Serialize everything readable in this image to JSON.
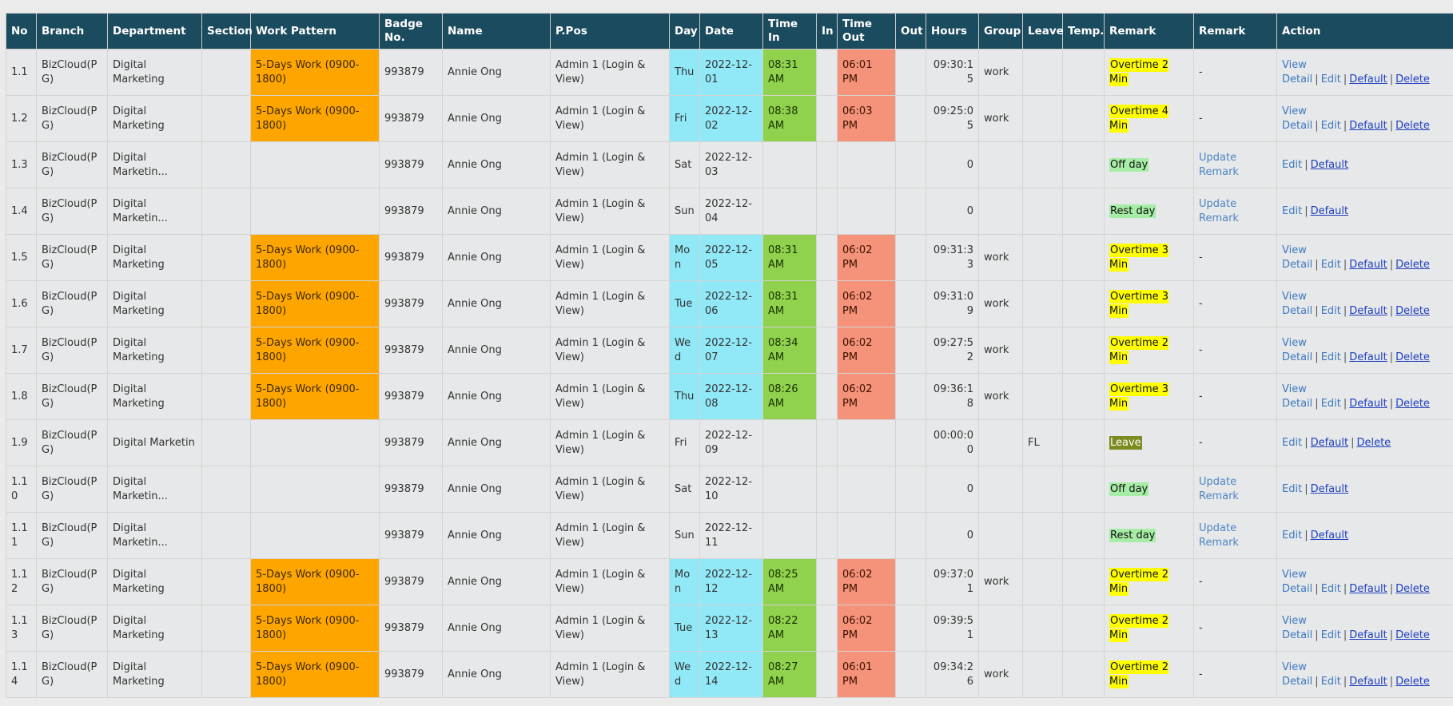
{
  "columns": [
    "No",
    "Branch",
    "Department",
    "Section",
    "Work Pattern",
    "Badge No.",
    "Name",
    "P.Pos",
    "Day",
    "Date",
    "Time In",
    "In",
    "Time Out",
    "Out",
    "Hours",
    "Group",
    "Leave",
    "Temp.",
    "Remark",
    "Remark",
    "Action"
  ],
  "action_labels": {
    "view": "View Detail",
    "edit": "Edit",
    "default": "Default",
    "delete": "Delete",
    "update_remark": "Update Remark"
  },
  "colors": {
    "header_bg": "#1b4b5e",
    "work_pattern": "#ffa500",
    "day_date": "#91e8f7",
    "time_in": "#90d24d",
    "time_out": "#f5937a",
    "overtime": "#ffff00",
    "off_rest": "#a6eda6",
    "leave": "#7c8a1f"
  },
  "rows": [
    {
      "no": "1.1",
      "branch": "BizCloud(PG)",
      "department": "Digital Marketing",
      "section": "",
      "work_pattern": "5-Days Work (0900-1800)",
      "badge": "993879",
      "name": "Annie Ong",
      "ppos": "Admin 1 (Login & View)",
      "day": "Thu",
      "date": "2022-12-01",
      "time_in": "08:31 AM",
      "in": "",
      "time_out": "06:01 PM",
      "out": "",
      "hours": "09:30:15",
      "group": "work",
      "leave": "",
      "temp": "",
      "remark": "Overtime 2 Min",
      "remark_type": "ot",
      "remark2": "-",
      "actions": [
        "view",
        "edit",
        "default",
        "delete"
      ]
    },
    {
      "no": "1.2",
      "branch": "BizCloud(PG)",
      "department": "Digital Marketing",
      "section": "",
      "work_pattern": "5-Days Work (0900-1800)",
      "badge": "993879",
      "name": "Annie Ong",
      "ppos": "Admin 1 (Login & View)",
      "day": "Fri",
      "date": "2022-12-02",
      "time_in": "08:38 AM",
      "in": "",
      "time_out": "06:03 PM",
      "out": "",
      "hours": "09:25:05",
      "group": "work",
      "leave": "",
      "temp": "",
      "remark": "Overtime 4 Min",
      "remark_type": "ot",
      "remark2": "-",
      "actions": [
        "view",
        "edit",
        "default",
        "delete"
      ]
    },
    {
      "no": "1.3",
      "branch": "BizCloud(PG)",
      "department": "Digital Marketin...",
      "section": "",
      "work_pattern": "",
      "badge": "993879",
      "name": "Annie Ong",
      "ppos": "Admin 1 (Login & View)",
      "day": "Sat",
      "date": "2022-12-03",
      "time_in": "",
      "in": "",
      "time_out": "",
      "out": "",
      "hours": "0",
      "group": "",
      "leave": "",
      "temp": "",
      "remark": "Off day",
      "remark_type": "off",
      "remark2": "update",
      "actions": [
        "edit",
        "default"
      ]
    },
    {
      "no": "1.4",
      "branch": "BizCloud(PG)",
      "department": "Digital Marketin...",
      "section": "",
      "work_pattern": "",
      "badge": "993879",
      "name": "Annie Ong",
      "ppos": "Admin 1 (Login & View)",
      "day": "Sun",
      "date": "2022-12-04",
      "time_in": "",
      "in": "",
      "time_out": "",
      "out": "",
      "hours": "0",
      "group": "",
      "leave": "",
      "temp": "",
      "remark": "Rest day",
      "remark_type": "rest",
      "remark2": "update",
      "actions": [
        "edit",
        "default"
      ]
    },
    {
      "no": "1.5",
      "branch": "BizCloud(PG)",
      "department": "Digital Marketing",
      "section": "",
      "work_pattern": "5-Days Work (0900-1800)",
      "badge": "993879",
      "name": "Annie Ong",
      "ppos": "Admin 1 (Login & View)",
      "day": "Mon",
      "date": "2022-12-05",
      "time_in": "08:31 AM",
      "in": "",
      "time_out": "06:02 PM",
      "out": "",
      "hours": "09:31:33",
      "group": "work",
      "leave": "",
      "temp": "",
      "remark": "Overtime 3 Min",
      "remark_type": "ot",
      "remark2": "-",
      "actions": [
        "view",
        "edit",
        "default",
        "delete"
      ]
    },
    {
      "no": "1.6",
      "branch": "BizCloud(PG)",
      "department": "Digital Marketing",
      "section": "",
      "work_pattern": "5-Days Work (0900-1800)",
      "badge": "993879",
      "name": "Annie Ong",
      "ppos": "Admin 1 (Login & View)",
      "day": "Tue",
      "date": "2022-12-06",
      "time_in": "08:31 AM",
      "in": "",
      "time_out": "06:02 PM",
      "out": "",
      "hours": "09:31:09",
      "group": "work",
      "leave": "",
      "temp": "",
      "remark": "Overtime 3 Min",
      "remark_type": "ot",
      "remark2": "-",
      "actions": [
        "view",
        "edit",
        "default",
        "delete"
      ]
    },
    {
      "no": "1.7",
      "branch": "BizCloud(PG)",
      "department": "Digital Marketing",
      "section": "",
      "work_pattern": "5-Days Work (0900-1800)",
      "badge": "993879",
      "name": "Annie Ong",
      "ppos": "Admin 1 (Login & View)",
      "day": "Wed",
      "date": "2022-12-07",
      "time_in": "08:34 AM",
      "in": "",
      "time_out": "06:02 PM",
      "out": "",
      "hours": "09:27:52",
      "group": "work",
      "leave": "",
      "temp": "",
      "remark": "Overtime 2 Min",
      "remark_type": "ot",
      "remark2": "-",
      "actions": [
        "view",
        "edit",
        "default",
        "delete"
      ]
    },
    {
      "no": "1.8",
      "branch": "BizCloud(PG)",
      "department": "Digital Marketing",
      "section": "",
      "work_pattern": "5-Days Work (0900-1800)",
      "badge": "993879",
      "name": "Annie Ong",
      "ppos": "Admin 1 (Login & View)",
      "day": "Thu",
      "date": "2022-12-08",
      "time_in": "08:26 AM",
      "in": "",
      "time_out": "06:02 PM",
      "out": "",
      "hours": "09:36:18",
      "group": "work",
      "leave": "",
      "temp": "",
      "remark": "Overtime 3 Min",
      "remark_type": "ot",
      "remark2": "-",
      "actions": [
        "view",
        "edit",
        "default",
        "delete"
      ]
    },
    {
      "no": "1.9",
      "branch": "BizCloud(PG)",
      "department": "Digital Marketin",
      "section": "",
      "work_pattern": "",
      "badge": "993879",
      "name": "Annie Ong",
      "ppos": "Admin 1 (Login & View)",
      "day": "Fri",
      "date": "2022-12-09",
      "time_in": "",
      "in": "",
      "time_out": "",
      "out": "",
      "hours": "00:00:00",
      "group": "",
      "leave": "FL",
      "temp": "",
      "remark": "Leave",
      "remark_type": "leave",
      "remark2": "-",
      "actions": [
        "edit",
        "default",
        "delete"
      ]
    },
    {
      "no": "1.10",
      "branch": "BizCloud(PG)",
      "department": "Digital Marketin...",
      "section": "",
      "work_pattern": "",
      "badge": "993879",
      "name": "Annie Ong",
      "ppos": "Admin 1 (Login & View)",
      "day": "Sat",
      "date": "2022-12-10",
      "time_in": "",
      "in": "",
      "time_out": "",
      "out": "",
      "hours": "0",
      "group": "",
      "leave": "",
      "temp": "",
      "remark": "Off day",
      "remark_type": "off",
      "remark2": "update",
      "actions": [
        "edit",
        "default"
      ]
    },
    {
      "no": "1.11",
      "branch": "BizCloud(PG)",
      "department": "Digital Marketin...",
      "section": "",
      "work_pattern": "",
      "badge": "993879",
      "name": "Annie Ong",
      "ppos": "Admin 1 (Login & View)",
      "day": "Sun",
      "date": "2022-12-11",
      "time_in": "",
      "in": "",
      "time_out": "",
      "out": "",
      "hours": "0",
      "group": "",
      "leave": "",
      "temp": "",
      "remark": "Rest day",
      "remark_type": "rest",
      "remark2": "update",
      "actions": [
        "edit",
        "default"
      ]
    },
    {
      "no": "1.12",
      "branch": "BizCloud(PG)",
      "department": "Digital Marketing",
      "section": "",
      "work_pattern": "5-Days Work (0900-1800)",
      "badge": "993879",
      "name": "Annie Ong",
      "ppos": "Admin 1 (Login & View)",
      "day": "Mon",
      "date": "2022-12-12",
      "time_in": "08:25 AM",
      "in": "",
      "time_out": "06:02 PM",
      "out": "",
      "hours": "09:37:01",
      "group": "work",
      "leave": "",
      "temp": "",
      "remark": "Overtime 2 Min",
      "remark_type": "ot",
      "remark2": "-",
      "actions": [
        "view",
        "edit",
        "default",
        "delete"
      ]
    },
    {
      "no": "1.13",
      "branch": "BizCloud(PG)",
      "department": "Digital Marketing",
      "section": "",
      "work_pattern": "5-Days Work (0900-1800)",
      "badge": "993879",
      "name": "Annie Ong",
      "ppos": "Admin 1 (Login & View)",
      "day": "Tue",
      "date": "2022-12-13",
      "time_in": "08:22 AM",
      "in": "",
      "time_out": "06:02 PM",
      "out": "",
      "hours": "09:39:51",
      "group": "",
      "leave": "",
      "temp": "",
      "remark": "Overtime 2 Min",
      "remark_type": "ot",
      "remark2": "-",
      "actions": [
        "view",
        "edit",
        "default",
        "delete"
      ]
    },
    {
      "no": "1.14",
      "branch": "BizCloud(PG)",
      "department": "Digital Marketing",
      "section": "",
      "work_pattern": "5-Days Work (0900-1800)",
      "badge": "993879",
      "name": "Annie Ong",
      "ppos": "Admin 1 (Login & View)",
      "day": "Wed",
      "date": "2022-12-14",
      "time_in": "08:27 AM",
      "in": "",
      "time_out": "06:01 PM",
      "out": "",
      "hours": "09:34:26",
      "group": "work",
      "leave": "",
      "temp": "",
      "remark": "Overtime 2 Min",
      "remark_type": "ot",
      "remark2": "-",
      "actions": [
        "view",
        "edit",
        "default",
        "delete"
      ]
    }
  ]
}
